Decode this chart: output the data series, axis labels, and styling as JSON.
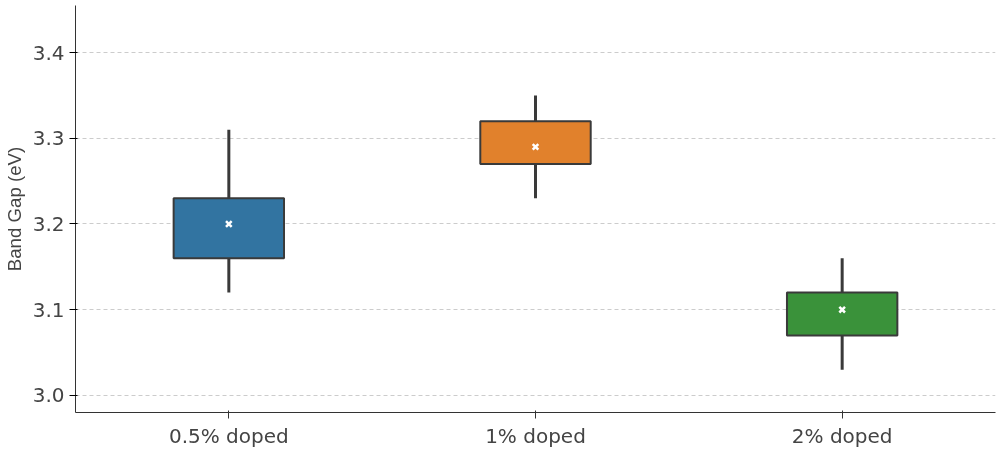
{
  "chart_data": {
    "type": "box",
    "ylabel": "Band Gap (eV)",
    "categories": [
      "0.5% doped",
      "1% doped",
      "2% doped"
    ],
    "colors": [
      "#3274a1",
      "#e1812c",
      "#3a923a"
    ],
    "boxes": [
      {
        "low": 3.12,
        "q1": 3.16,
        "median": 3.2,
        "q3": 3.23,
        "high": 3.31
      },
      {
        "low": 3.23,
        "q1": 3.27,
        "median": 3.29,
        "q3": 3.32,
        "high": 3.35
      },
      {
        "low": 3.03,
        "q1": 3.07,
        "median": 3.1,
        "q3": 3.12,
        "high": 3.16
      }
    ],
    "ylim": [
      2.98,
      3.455
    ],
    "yticks": [
      {
        "value": 3.0,
        "label": "3.0"
      },
      {
        "value": 3.1,
        "label": "3.1"
      },
      {
        "value": 3.2,
        "label": "3.2"
      },
      {
        "value": 3.3,
        "label": "3.3"
      },
      {
        "value": 3.4,
        "label": "3.4"
      }
    ],
    "grid": "y"
  }
}
